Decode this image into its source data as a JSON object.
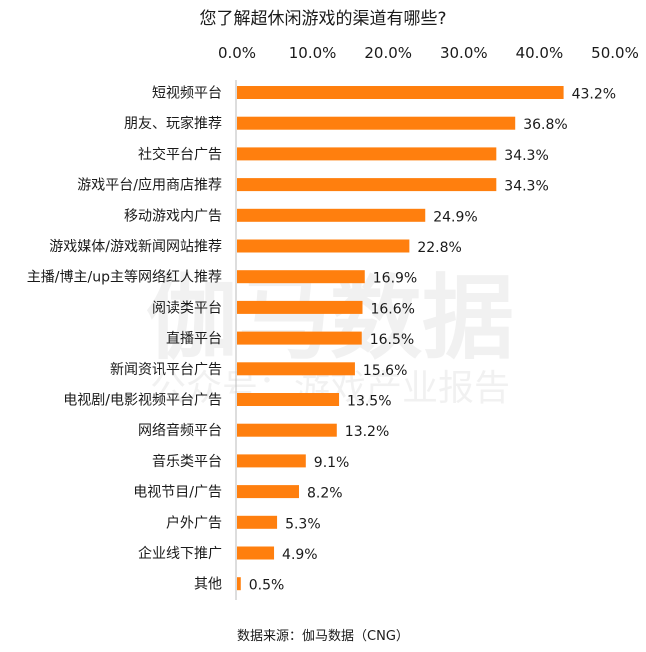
{
  "chart_data": {
    "type": "bar",
    "orientation": "horizontal",
    "title": "您了解超休闲游戏的渠道有哪些?",
    "categories": [
      "短视频平台",
      "朋友、玩家推荐",
      "社交平台广告",
      "游戏平台/应用商店推荐",
      "移动游戏内广告",
      "游戏媒体/游戏新闻网站推荐",
      "主播/博主/up主等网络红人推荐",
      "阅读类平台",
      "直播平台",
      "新闻资讯平台广告",
      "电视剧/电影视频平台广告",
      "网络音频平台",
      "音乐类平台",
      "电视节目/广告",
      "户外广告",
      "企业线下推广",
      "其他"
    ],
    "values": [
      43.2,
      36.8,
      34.3,
      34.3,
      24.9,
      22.8,
      16.9,
      16.6,
      16.5,
      15.6,
      13.5,
      13.2,
      9.1,
      8.2,
      5.3,
      4.9,
      0.5
    ],
    "value_labels": [
      "43.2%",
      "36.8%",
      "34.3%",
      "34.3%",
      "24.9%",
      "22.8%",
      "16.9%",
      "16.6%",
      "16.5%",
      "15.6%",
      "13.5%",
      "13.2%",
      "9.1%",
      "8.2%",
      "5.3%",
      "4.9%",
      "0.5%"
    ],
    "x_ticks": [
      "0.0%",
      "10.0%",
      "20.0%",
      "30.0%",
      "40.0%",
      "50.0%"
    ],
    "xlim": [
      0,
      50
    ],
    "axis_position": "top",
    "grid": false,
    "bar_color": "#ff7f0e",
    "source": "数据来源：伽马数据（CNG）",
    "watermark": {
      "main": "伽马数据",
      "sub": "公众号：游戏产业报告"
    }
  }
}
